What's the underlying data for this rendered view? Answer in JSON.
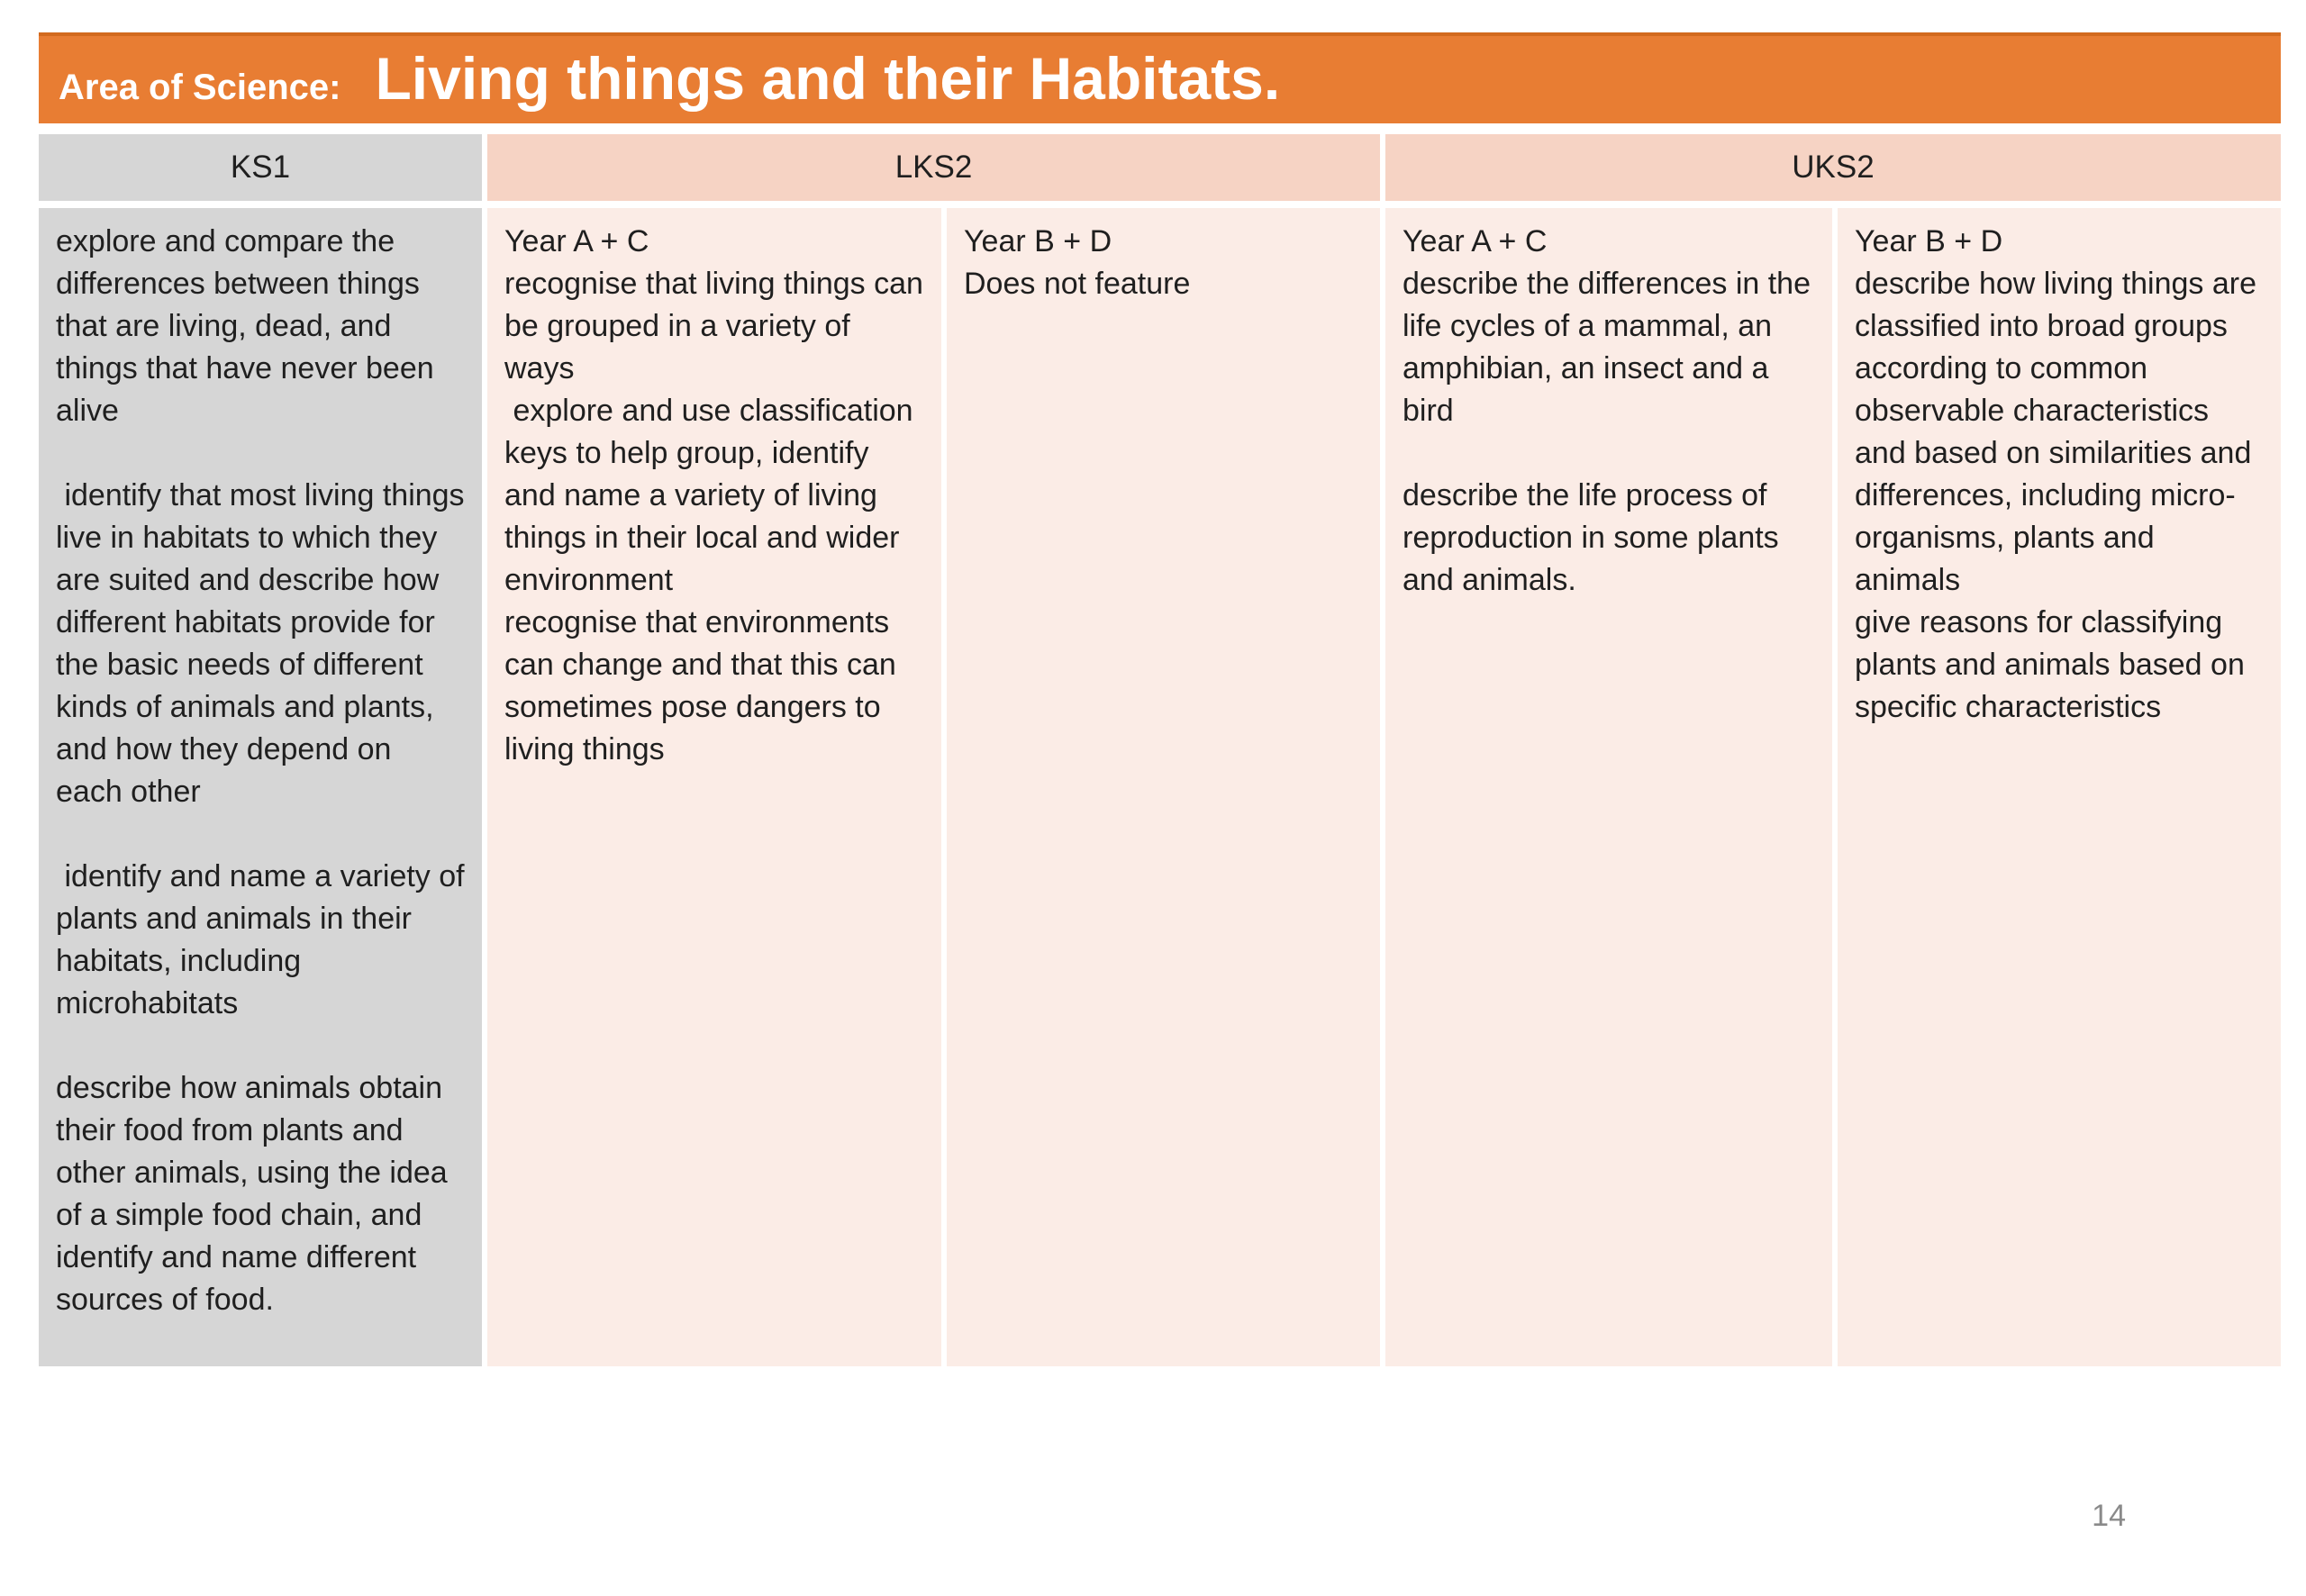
{
  "title_bar": {
    "label": "Area of Science:",
    "title": "Living things and their Habitats."
  },
  "table": {
    "headers": [
      {
        "label": "KS1"
      },
      {
        "label": "LKS2"
      },
      {
        "label": "UKS2"
      }
    ],
    "cells": [
      {
        "column": "KS1",
        "text": "explore and compare the differences between things that are living, dead, and things that have never been alive\n\n identify that most living things live in habitats to which they are suited and describe how different habitats provide for the basic needs of different kinds of animals and plants, and how they depend on each other\n\n identify and name a variety of plants and animals in their habitats, including microhabitats\n\ndescribe how animals obtain their food from plants and other animals, using the idea of a simple food chain, and identify and name different sources of food."
      },
      {
        "column": "LKS2 Year A + C",
        "text": "Year A + C\nrecognise that living things can be grouped in a variety of ways\n explore and use classification keys to help group, identify and name a variety of living things in their local and wider environment\nrecognise that environments can change and that this can sometimes pose dangers to living things"
      },
      {
        "column": "LKS2 Year B + D",
        "text": "Year B + D\nDoes not feature"
      },
      {
        "column": "UKS2 Year A + C",
        "text": "Year A + C\ndescribe the differences in the life cycles of a mammal, an amphibian, an insect and a bird\n\ndescribe the life process of reproduction in some plants and animals."
      },
      {
        "column": "UKS2 Year B + D",
        "text": "Year B + D\ndescribe how living things are classified into broad groups according to common observable characteristics and based on similarities and differences, including micro-organisms, plants and animals\ngive reasons for classifying plants and animals based on specific characteristics"
      }
    ]
  },
  "page": {
    "number": "14"
  },
  "colors": {
    "orange": "#E87D33",
    "orange_dark": "#D26A1E",
    "gray": "#D6D6D6",
    "peach": "#F6D3C4",
    "pink": "#FBECE6",
    "text": "#1F1F1F",
    "pagenum": "#8A8A8A"
  }
}
